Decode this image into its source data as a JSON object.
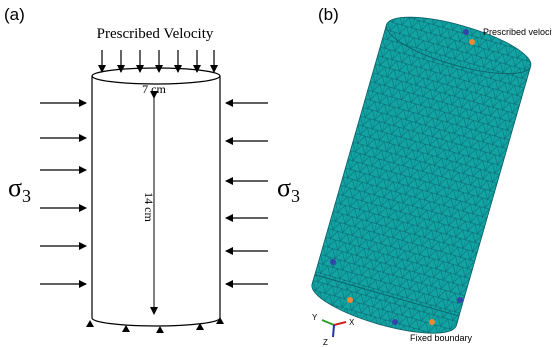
{
  "panel_a": {
    "label": "(a)",
    "top_label": "Prescribed Velocity",
    "diameter": "7 cm",
    "height": "14 cm",
    "sigma_left": {
      "symbol": "σ",
      "subscript": "3"
    },
    "sigma_right": {
      "symbol": "σ",
      "subscript": "3"
    }
  },
  "panel_b": {
    "label": "(b)",
    "top_label": "Prescribed velocity",
    "bottom_label": "Fixed boundary",
    "axes": {
      "y": "Y",
      "x": "X",
      "z": "Z"
    }
  }
}
